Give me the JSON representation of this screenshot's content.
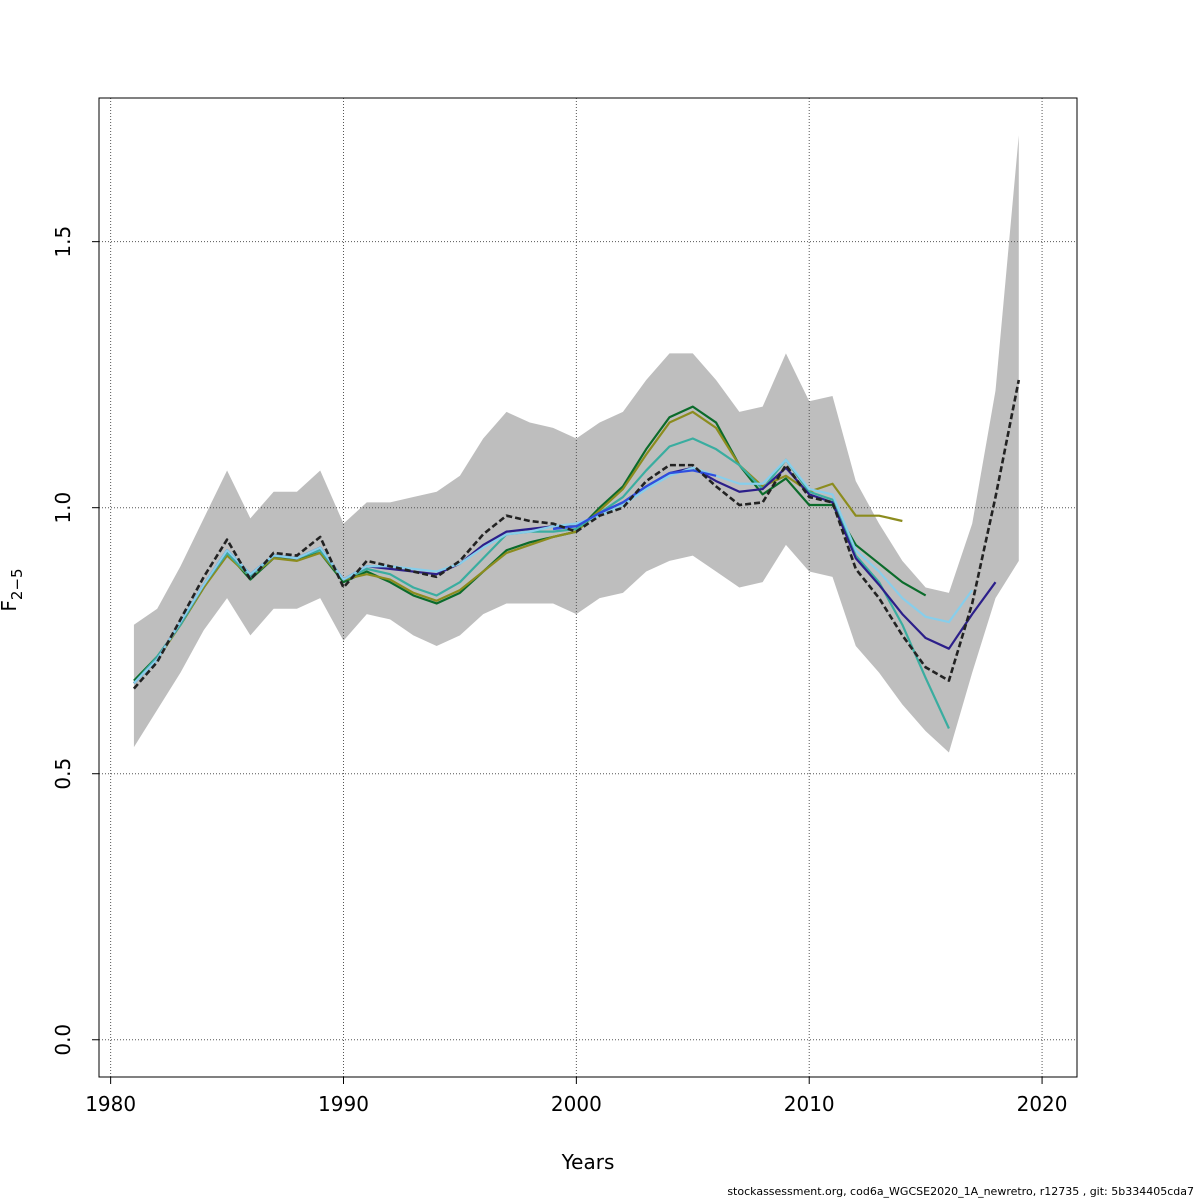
{
  "chart_data": {
    "type": "line",
    "xlabel": "Years",
    "ylabel": "F",
    "ylabel_subscript": "2−5",
    "xlim": [
      1979.5,
      2021.5
    ],
    "ylim": [
      -0.07,
      1.77
    ],
    "xticks": [
      1980,
      1990,
      2000,
      2010,
      2020
    ],
    "yticks": [
      0.0,
      0.5,
      1.0,
      1.5
    ],
    "xtick_labels": [
      "1980",
      "1990",
      "2000",
      "2010",
      "2020"
    ],
    "ytick_labels": [
      "0.0",
      "0.5",
      "1.0",
      "1.5"
    ],
    "grid": true,
    "band": {
      "color": "#bebebe",
      "x": [
        1981,
        1982,
        1983,
        1984,
        1985,
        1986,
        1987,
        1988,
        1989,
        1990,
        1991,
        1992,
        1993,
        1994,
        1995,
        1996,
        1997,
        1998,
        1999,
        2000,
        2001,
        2002,
        2003,
        2004,
        2005,
        2006,
        2007,
        2008,
        2009,
        2010,
        2011,
        2012,
        2013,
        2014,
        2015,
        2016,
        2017,
        2018,
        2019
      ],
      "upper": [
        0.78,
        0.81,
        0.89,
        0.98,
        1.07,
        0.98,
        1.03,
        1.03,
        1.07,
        0.97,
        1.01,
        1.01,
        1.02,
        1.03,
        1.06,
        1.13,
        1.18,
        1.16,
        1.15,
        1.13,
        1.16,
        1.18,
        1.24,
        1.29,
        1.29,
        1.24,
        1.18,
        1.19,
        1.29,
        1.2,
        1.21,
        1.05,
        0.97,
        0.9,
        0.85,
        0.84,
        0.97,
        1.22,
        1.7
      ],
      "lower": [
        0.55,
        0.62,
        0.69,
        0.77,
        0.83,
        0.76,
        0.81,
        0.81,
        0.83,
        0.75,
        0.8,
        0.79,
        0.76,
        0.74,
        0.76,
        0.8,
        0.82,
        0.82,
        0.82,
        0.8,
        0.83,
        0.84,
        0.88,
        0.9,
        0.91,
        0.88,
        0.85,
        0.86,
        0.93,
        0.88,
        0.87,
        0.74,
        0.69,
        0.63,
        0.58,
        0.54,
        0.69,
        0.83,
        0.9
      ]
    },
    "series": [
      {
        "color": "#0b6b2b",
        "x": [
          1981,
          1982,
          1983,
          1984,
          1985,
          1986,
          1987,
          1988,
          1989,
          1990,
          1991,
          1992,
          1993,
          1994,
          1995,
          1996,
          1997,
          1998,
          1999,
          2000,
          2001,
          2002,
          2003,
          2004,
          2005,
          2006,
          2007,
          2008,
          2009,
          2010,
          2011,
          2012,
          2013,
          2014,
          2015
        ],
        "y": [
          0.675,
          0.72,
          0.78,
          0.85,
          0.915,
          0.865,
          0.905,
          0.905,
          0.915,
          0.86,
          0.88,
          0.86,
          0.835,
          0.82,
          0.84,
          0.88,
          0.92,
          0.935,
          0.945,
          0.955,
          1.0,
          1.04,
          1.11,
          1.17,
          1.19,
          1.16,
          1.08,
          1.025,
          1.055,
          1.005,
          1.005,
          0.93,
          0.895,
          0.86,
          0.835
        ]
      },
      {
        "color": "#8c8c1e",
        "x": [
          1981,
          1982,
          1983,
          1984,
          1985,
          1986,
          1987,
          1988,
          1989,
          1990,
          1991,
          1992,
          1993,
          1994,
          1995,
          1996,
          1997,
          1998,
          1999,
          2000,
          2001,
          2002,
          2003,
          2004,
          2005,
          2006,
          2007,
          2008,
          2009,
          2010,
          2011,
          2012,
          2013,
          2014
        ],
        "y": [
          0.67,
          0.715,
          0.78,
          0.85,
          0.91,
          0.87,
          0.905,
          0.9,
          0.915,
          0.865,
          0.875,
          0.865,
          0.84,
          0.825,
          0.845,
          0.88,
          0.915,
          0.93,
          0.945,
          0.955,
          0.995,
          1.035,
          1.1,
          1.16,
          1.18,
          1.15,
          1.08,
          1.04,
          1.06,
          1.03,
          1.045,
          0.985,
          0.985,
          0.975
        ]
      },
      {
        "color": "#3aada0",
        "x": [
          1981,
          1982,
          1983,
          1984,
          1985,
          1986,
          1987,
          1988,
          1989,
          1990,
          1991,
          1992,
          1993,
          1994,
          1995,
          1996,
          1997,
          1998,
          1999,
          2000,
          2001,
          2002,
          2003,
          2004,
          2005,
          2006,
          2007,
          2008,
          2009,
          2010,
          2011,
          2012,
          2013,
          2014,
          2015,
          2016
        ],
        "y": [
          0.67,
          0.72,
          0.78,
          0.855,
          0.915,
          0.87,
          0.91,
          0.905,
          0.92,
          0.865,
          0.885,
          0.875,
          0.85,
          0.835,
          0.86,
          0.905,
          0.95,
          0.955,
          0.955,
          0.96,
          0.99,
          1.02,
          1.07,
          1.115,
          1.13,
          1.11,
          1.08,
          1.035,
          1.09,
          1.03,
          1.015,
          0.91,
          0.86,
          0.78,
          0.68,
          0.585
        ]
      },
      {
        "color": "#2c1f8a",
        "x": [
          1981,
          1982,
          1983,
          1984,
          1985,
          1986,
          1987,
          1988,
          1989,
          1990,
          1991,
          1992,
          1993,
          1994,
          1995,
          1996,
          1997,
          1998,
          1999,
          2000,
          2001,
          2002,
          2003,
          2004,
          2005,
          2006,
          2007,
          2008,
          2009,
          2010,
          2011,
          2012,
          2013,
          2014,
          2015,
          2016,
          2017,
          2018
        ],
        "y": [
          0.67,
          0.715,
          0.785,
          0.855,
          0.92,
          0.875,
          0.91,
          0.905,
          0.925,
          0.865,
          0.89,
          0.885,
          0.88,
          0.875,
          0.895,
          0.93,
          0.955,
          0.96,
          0.965,
          0.965,
          0.99,
          1.01,
          1.04,
          1.065,
          1.075,
          1.05,
          1.03,
          1.035,
          1.075,
          1.025,
          1.01,
          0.905,
          0.855,
          0.8,
          0.755,
          0.735,
          0.8,
          0.86
        ]
      },
      {
        "color": "#87ceeb",
        "x": [
          1981,
          1982,
          1983,
          1984,
          1985,
          1986,
          1987,
          1988,
          1989,
          1990,
          1991,
          1992,
          1993,
          1994,
          1995,
          1996,
          1997,
          1998,
          1999,
          2000,
          2001,
          2002,
          2003,
          2004,
          2005,
          2006,
          2007,
          2008,
          2009,
          2010,
          2011,
          2012,
          2013,
          2014,
          2015,
          2016,
          2017
        ],
        "y": [
          0.67,
          0.715,
          0.785,
          0.855,
          0.92,
          0.875,
          0.91,
          0.905,
          0.925,
          0.865,
          0.89,
          0.89,
          0.885,
          0.88,
          0.895,
          0.925,
          0.95,
          0.955,
          0.965,
          0.97,
          0.985,
          1.005,
          1.035,
          1.06,
          1.075,
          1.06,
          1.045,
          1.045,
          1.09,
          1.035,
          1.025,
          0.92,
          0.88,
          0.83,
          0.795,
          0.785,
          0.845
        ]
      },
      {
        "color": "#2f4fe0",
        "x": [
          1999,
          2000,
          2001,
          2002,
          2003,
          2004,
          2005,
          2006
        ],
        "y": [
          0.96,
          0.965,
          0.99,
          1.01,
          1.04,
          1.065,
          1.07,
          1.06
        ]
      },
      {
        "color": "#222222",
        "dashed": true,
        "x": [
          1981,
          1982,
          1983,
          1984,
          1985,
          1986,
          1987,
          1988,
          1989,
          1990,
          1991,
          1992,
          1993,
          1994,
          1995,
          1996,
          1997,
          1998,
          1999,
          2000,
          2001,
          2002,
          2003,
          2004,
          2005,
          2006,
          2007,
          2008,
          2009,
          2010,
          2011,
          2012,
          2013,
          2014,
          2015,
          2016,
          2017,
          2018,
          2019
        ],
        "y": [
          0.66,
          0.71,
          0.79,
          0.87,
          0.94,
          0.865,
          0.915,
          0.91,
          0.945,
          0.85,
          0.9,
          0.89,
          0.88,
          0.87,
          0.9,
          0.95,
          0.985,
          0.975,
          0.97,
          0.955,
          0.985,
          1.0,
          1.05,
          1.08,
          1.08,
          1.04,
          1.005,
          1.01,
          1.08,
          1.02,
          1.01,
          0.885,
          0.83,
          0.76,
          0.7,
          0.675,
          0.82,
          1.02,
          1.24
        ]
      }
    ]
  },
  "footer": "stockassessment.org, cod6a_WGCSE2020_1A_newretro, r12735 , git: 5b334405cda7"
}
